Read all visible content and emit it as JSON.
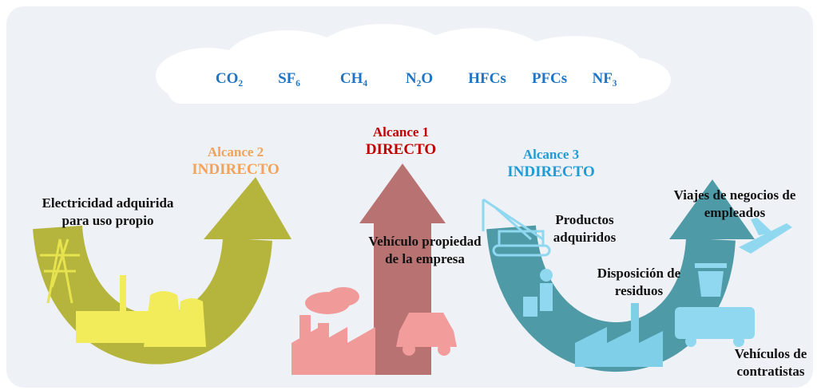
{
  "gases": [
    "CO₂",
    "SF₆",
    "CH₄",
    "N₂O",
    "HFCs",
    "PFCs",
    "NF₃"
  ],
  "scopes": [
    {
      "name": "Alcance 2",
      "kind": "INDIRECTO",
      "sources": [
        "Electricidad adquirida para uso propio"
      ]
    },
    {
      "name": "Alcance 1",
      "kind": "DIRECTO",
      "sources": [
        "Vehículo propiedad de la empresa"
      ]
    },
    {
      "name": "Alcance 3",
      "kind": "INDIRECTO",
      "sources": [
        "Productos adquiridos",
        "Disposición de residuos",
        "Viajes de negocios de empleados",
        "Vehículos de contratistas"
      ]
    }
  ]
}
